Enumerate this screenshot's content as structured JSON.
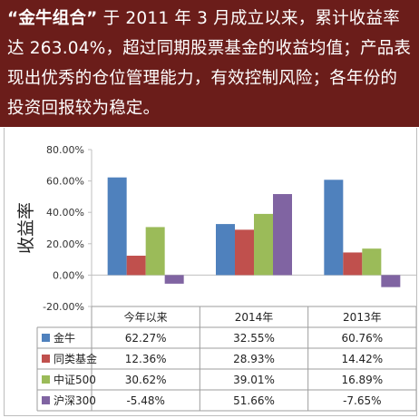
{
  "banner": {
    "highlight": "“金牛组合”",
    "text": "于 2011 年 3 月成立以来，累计收益率达 263.04%，超过同期股票基金的收益均值；产品表现出优秀的仓位管理能力，有效控制风险；各年份的投资回报较为稳定。"
  },
  "chart_data": {
    "type": "bar",
    "ylabel": "收益率",
    "ylim": [
      -20,
      80
    ],
    "yticks": [
      "80.00%",
      "60.00%",
      "40.00%",
      "20.00%",
      "0.00%",
      "-20.00%"
    ],
    "categories": [
      "今年以来",
      "2014年",
      "2013年"
    ],
    "series": [
      {
        "name": "金牛",
        "color": "#4f81bd",
        "values": [
          62.27,
          32.55,
          60.76
        ],
        "labels": [
          "62.27%",
          "32.55%",
          "60.76%"
        ]
      },
      {
        "name": "同类基金",
        "color": "#c0504d",
        "values": [
          12.36,
          28.93,
          14.42
        ],
        "labels": [
          "12.36%",
          "28.93%",
          "14.42%"
        ]
      },
      {
        "name": "中证500",
        "color": "#9bbb59",
        "values": [
          30.62,
          39.01,
          16.89
        ],
        "labels": [
          "30.62%",
          "39.01%",
          "16.89%"
        ]
      },
      {
        "name": "沪深300",
        "color": "#8064a2",
        "values": [
          -5.48,
          51.66,
          -7.65
        ],
        "labels": [
          "-5.48%",
          "51.66%",
          "-7.65%"
        ]
      }
    ]
  }
}
